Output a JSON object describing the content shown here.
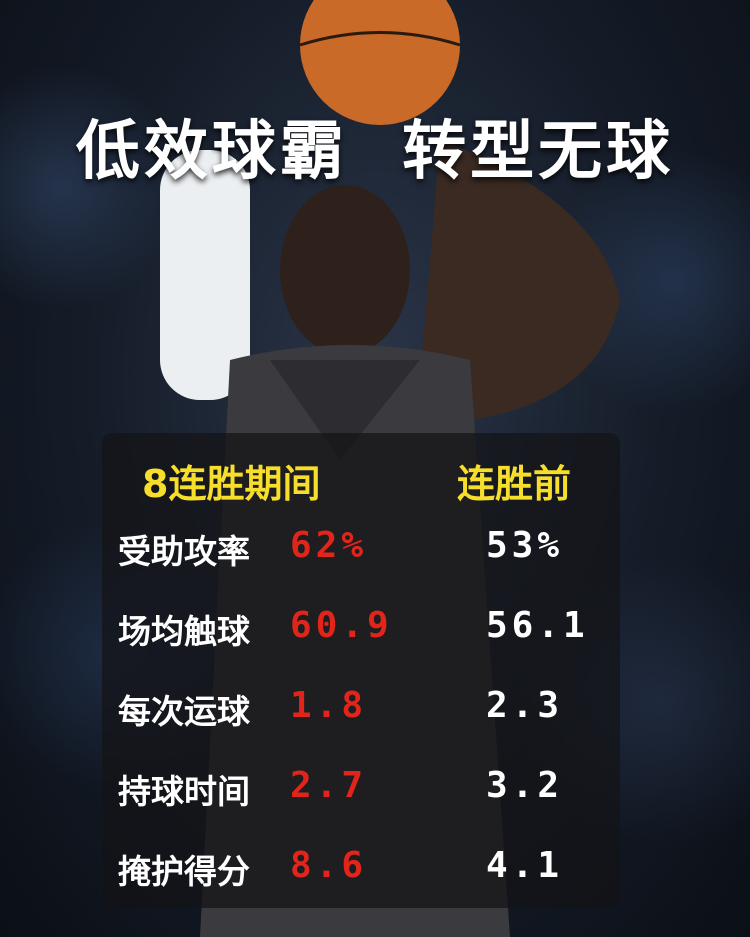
{
  "title": {
    "part1": "低效球霸",
    "part2": "转型无球"
  },
  "table": {
    "headers": {
      "during": "8连胜期间",
      "before": "连胜前"
    },
    "rows": [
      {
        "label": "受助攻率",
        "during": "62%",
        "before": "53%"
      },
      {
        "label": "场均触球",
        "during": "60.9",
        "before": "56.1"
      },
      {
        "label": "每次运球",
        "during": "1.8",
        "before": "2.3"
      },
      {
        "label": "持球时间",
        "during": "2.7",
        "before": "3.2"
      },
      {
        "label": "掩护得分",
        "during": "8.6",
        "before": "4.1"
      }
    ]
  },
  "colors": {
    "header": "#f7de2a",
    "during_value": "#e2241b",
    "before_value": "#ffffff"
  }
}
